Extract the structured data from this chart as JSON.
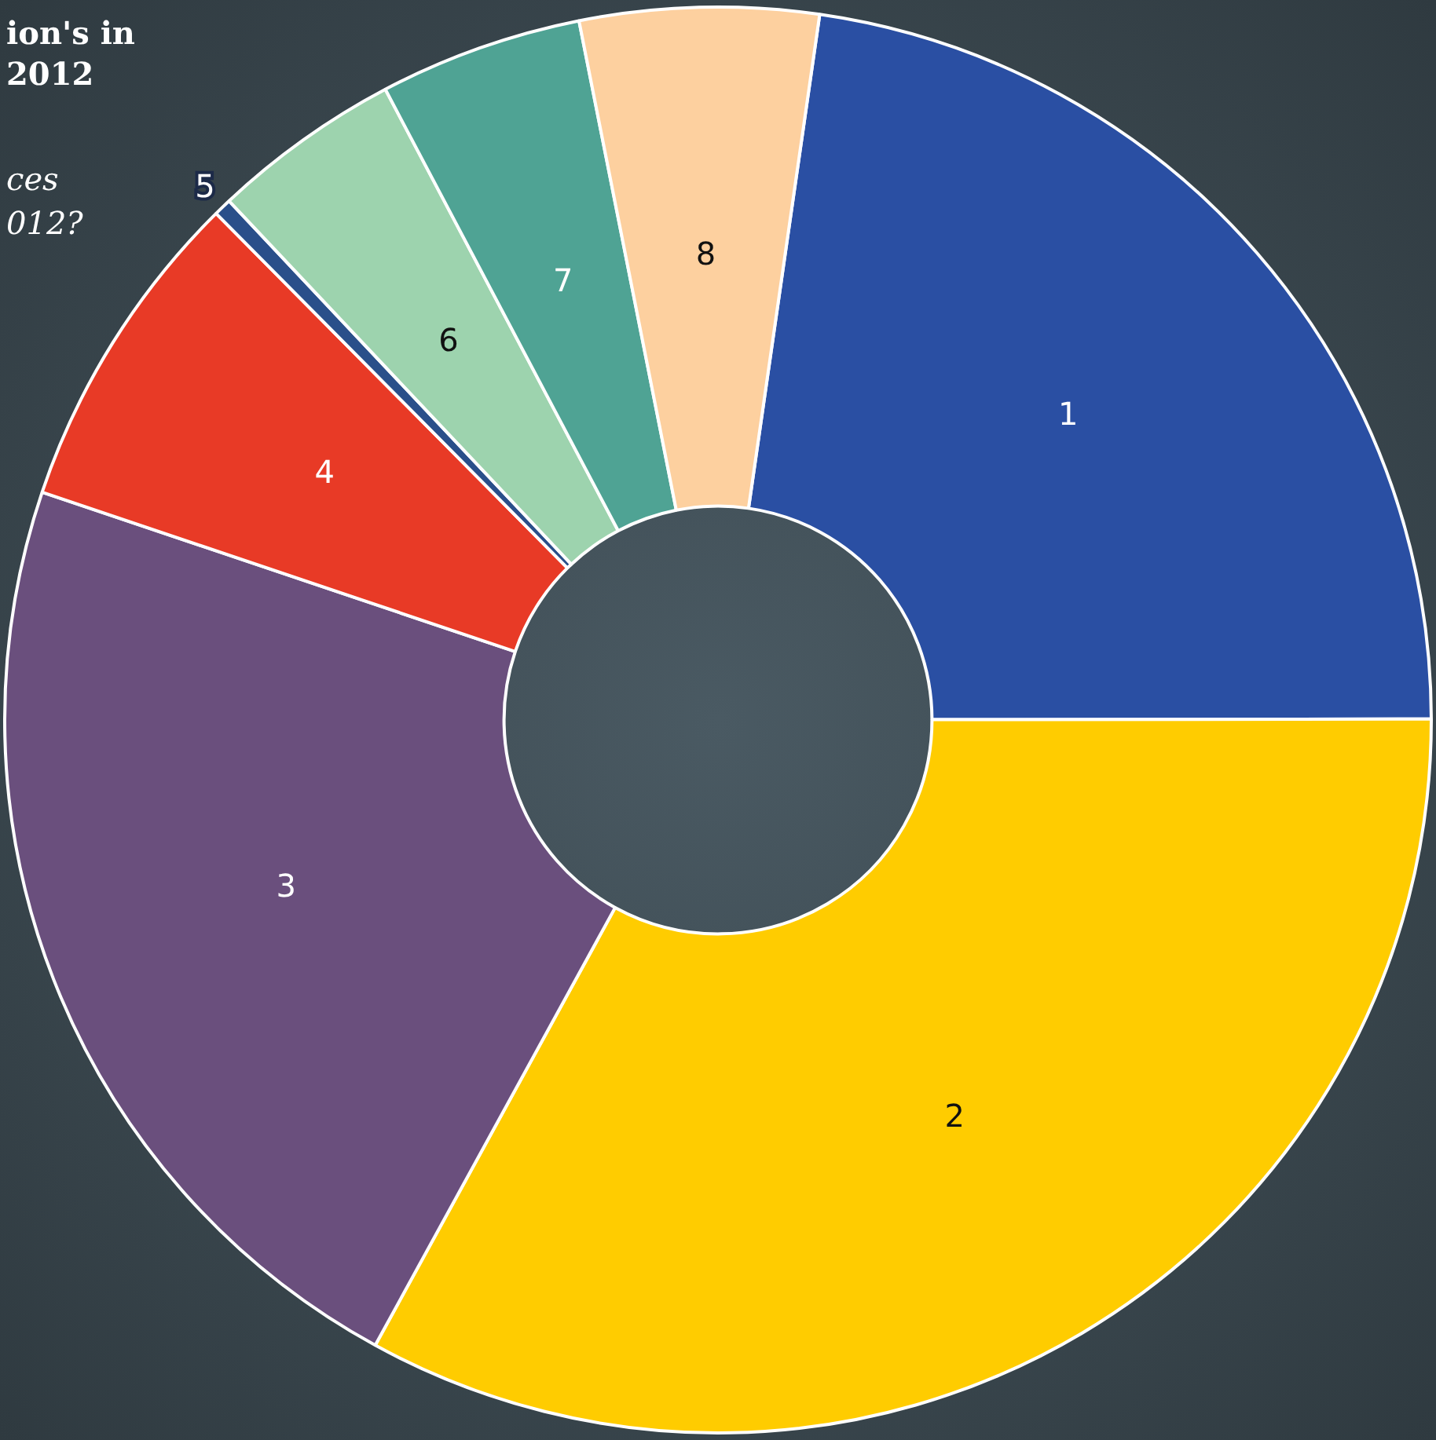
{
  "chart_data": {
    "type": "donut",
    "title": "ion's in 2012",
    "subtitle": "ces 012?",
    "categories": [
      "1",
      "2",
      "3",
      "4",
      "5",
      "6",
      "7",
      "8"
    ],
    "values": [
      22.7,
      33,
      22.2,
      7.4,
      0.4,
      4.3,
      4.6,
      5.4
    ],
    "colors": [
      "#2a4fa3",
      "#ffcc00",
      "#6a4f7d",
      "#e83a26",
      "#2a4f8a",
      "#9dd3ae",
      "#4fa394",
      "#fdd09f"
    ],
    "legend": false
  }
}
